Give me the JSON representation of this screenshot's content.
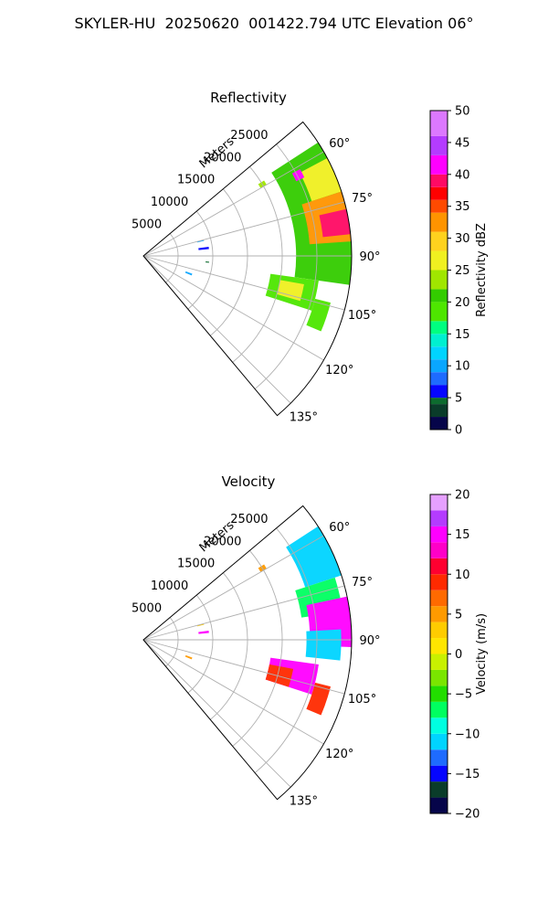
{
  "title": "SKYLER-HU  20250620  001422.794 UTC Elevation 06°",
  "colors": {
    "grid": "#b0b0b0",
    "frame": "#000000"
  },
  "chart_data": [
    {
      "type": "heatmap",
      "projection": "polar-sector",
      "title": "Reflectivity",
      "range_label": "Meters",
      "range_ticks": [
        "5000",
        "10000",
        "15000",
        "20000",
        "25000"
      ],
      "azimuth_ticks": [
        "60°",
        "75°",
        "90°",
        "105°",
        "120°",
        "135°"
      ],
      "range_limit": [
        0,
        30000
      ],
      "azimuth_limit": [
        50,
        140
      ],
      "colorbar": {
        "label": "Reflectivity dBZ",
        "range": [
          0,
          50
        ],
        "ticks": [
          "0",
          "5",
          "10",
          "15",
          "20",
          "25",
          "30",
          "35",
          "40",
          "45",
          "50"
        ],
        "stops": [
          [
            0,
            "#06054a"
          ],
          [
            2,
            "#0a3c2a"
          ],
          [
            4,
            "#0d6b2e"
          ],
          [
            5,
            "#0505ff"
          ],
          [
            7,
            "#1e6bff"
          ],
          [
            9,
            "#0aa6ff"
          ],
          [
            11,
            "#00d4ff"
          ],
          [
            13,
            "#00f0d0"
          ],
          [
            15,
            "#00ff80"
          ],
          [
            17,
            "#4ee600"
          ],
          [
            20,
            "#33cc00"
          ],
          [
            22,
            "#a0e600"
          ],
          [
            25,
            "#f0f020"
          ],
          [
            28,
            "#ffd21e"
          ],
          [
            31,
            "#ff9400"
          ],
          [
            34,
            "#ff4a00"
          ],
          [
            36,
            "#ff0000"
          ],
          [
            38,
            "#ff0a64"
          ],
          [
            40,
            "#ff00ff"
          ],
          [
            43,
            "#b43cff"
          ],
          [
            46,
            "#dc78ff"
          ],
          [
            50,
            "#ffe6ff"
          ]
        ]
      },
      "echoes": [
        {
          "az_from": 57,
          "az_to": 98,
          "range_from": 22000,
          "range_to": 30000,
          "value": 20
        },
        {
          "az_from": 62,
          "az_to": 72,
          "range_from": 25500,
          "range_to": 30000,
          "value": 27
        },
        {
          "az_from": 72,
          "az_to": 86,
          "range_from": 24000,
          "range_to": 30000,
          "value": 33
        },
        {
          "az_from": 77,
          "az_to": 84,
          "range_from": 26000,
          "range_to": 30000,
          "value": 38
        },
        {
          "az_from": 61,
          "az_to": 64,
          "range_from": 24500,
          "range_to": 25800,
          "value": 42
        },
        {
          "az_from": 98,
          "az_to": 108,
          "range_from": 18500,
          "range_to": 25500,
          "value": 19
        },
        {
          "az_from": 100,
          "az_to": 106,
          "range_from": 20000,
          "range_to": 23500,
          "value": 26
        },
        {
          "az_from": 104,
          "az_to": 113,
          "range_from": 25500,
          "range_to": 27800,
          "value": 18
        },
        {
          "az_from": 75,
          "az_to": 76,
          "range_from": 8000,
          "range_to": 9000,
          "value": 9
        },
        {
          "az_from": 82,
          "az_to": 84,
          "range_from": 8000,
          "range_to": 9500,
          "value": 6
        },
        {
          "az_from": 95,
          "az_to": 96,
          "range_from": 9000,
          "range_to": 9500,
          "value": 4
        },
        {
          "az_from": 110,
          "az_to": 112,
          "range_from": 6500,
          "range_to": 7500,
          "value": 10
        },
        {
          "az_from": 58,
          "az_to": 60,
          "range_from": 19500,
          "range_to": 20500,
          "value": 23
        }
      ]
    },
    {
      "type": "heatmap",
      "projection": "polar-sector",
      "title": "Velocity",
      "range_label": "Meters",
      "range_ticks": [
        "5000",
        "10000",
        "15000",
        "20000",
        "25000"
      ],
      "azimuth_ticks": [
        "60°",
        "75°",
        "90°",
        "105°",
        "120°",
        "135°"
      ],
      "range_limit": [
        0,
        30000
      ],
      "azimuth_limit": [
        50,
        140
      ],
      "colorbar": {
        "label": "Velocity (m/s)",
        "range": [
          -20,
          20
        ],
        "ticks": [
          "−20",
          "−15",
          "−10",
          "−5",
          "0",
          "5",
          "10",
          "15",
          "20"
        ],
        "stops": [
          [
            -20,
            "#06054a"
          ],
          [
            -18,
            "#0a3c2a"
          ],
          [
            -16,
            "#0505ff"
          ],
          [
            -14,
            "#1e6bff"
          ],
          [
            -12,
            "#00d4ff"
          ],
          [
            -10,
            "#00ffe0"
          ],
          [
            -8,
            "#00ff60"
          ],
          [
            -6,
            "#22dd00"
          ],
          [
            -4,
            "#7ae600"
          ],
          [
            -2,
            "#c8f000"
          ],
          [
            0,
            "#ffe600"
          ],
          [
            2,
            "#ffcc00"
          ],
          [
            4,
            "#ff9a00"
          ],
          [
            6,
            "#ff6a00"
          ],
          [
            8,
            "#ff2a00"
          ],
          [
            10,
            "#ff0030"
          ],
          [
            12,
            "#ff00c8"
          ],
          [
            14,
            "#ff00ff"
          ],
          [
            16,
            "#b43cff"
          ],
          [
            18,
            "#e6a0ff"
          ],
          [
            20,
            "#ffe6ff"
          ]
        ]
      },
      "echoes": [
        {
          "az_from": 57,
          "az_to": 72,
          "range_from": 24500,
          "range_to": 30000,
          "value": -11
        },
        {
          "az_from": 72,
          "az_to": 82,
          "range_from": 23000,
          "range_to": 29000,
          "value": -7
        },
        {
          "az_from": 78,
          "az_to": 92,
          "range_from": 24000,
          "range_to": 30000,
          "value": 15
        },
        {
          "az_from": 87,
          "az_to": 96,
          "range_from": 23500,
          "range_to": 28500,
          "value": -12
        },
        {
          "az_from": 98,
          "az_to": 108,
          "range_from": 18500,
          "range_to": 25500,
          "value": 14
        },
        {
          "az_from": 101,
          "az_to": 108,
          "range_from": 18500,
          "range_to": 22000,
          "value": 9
        },
        {
          "az_from": 104,
          "az_to": 113,
          "range_from": 25500,
          "range_to": 27800,
          "value": 8
        },
        {
          "az_from": 75,
          "az_to": 76,
          "range_from": 8000,
          "range_to": 9000,
          "value": 3
        },
        {
          "az_from": 82,
          "az_to": 84,
          "range_from": 8000,
          "range_to": 9500,
          "value": 15
        },
        {
          "az_from": 110,
          "az_to": 112,
          "range_from": 6500,
          "range_to": 7500,
          "value": 4
        },
        {
          "az_from": 58,
          "az_to": 60,
          "range_from": 19500,
          "range_to": 20500,
          "value": 4
        }
      ]
    }
  ]
}
